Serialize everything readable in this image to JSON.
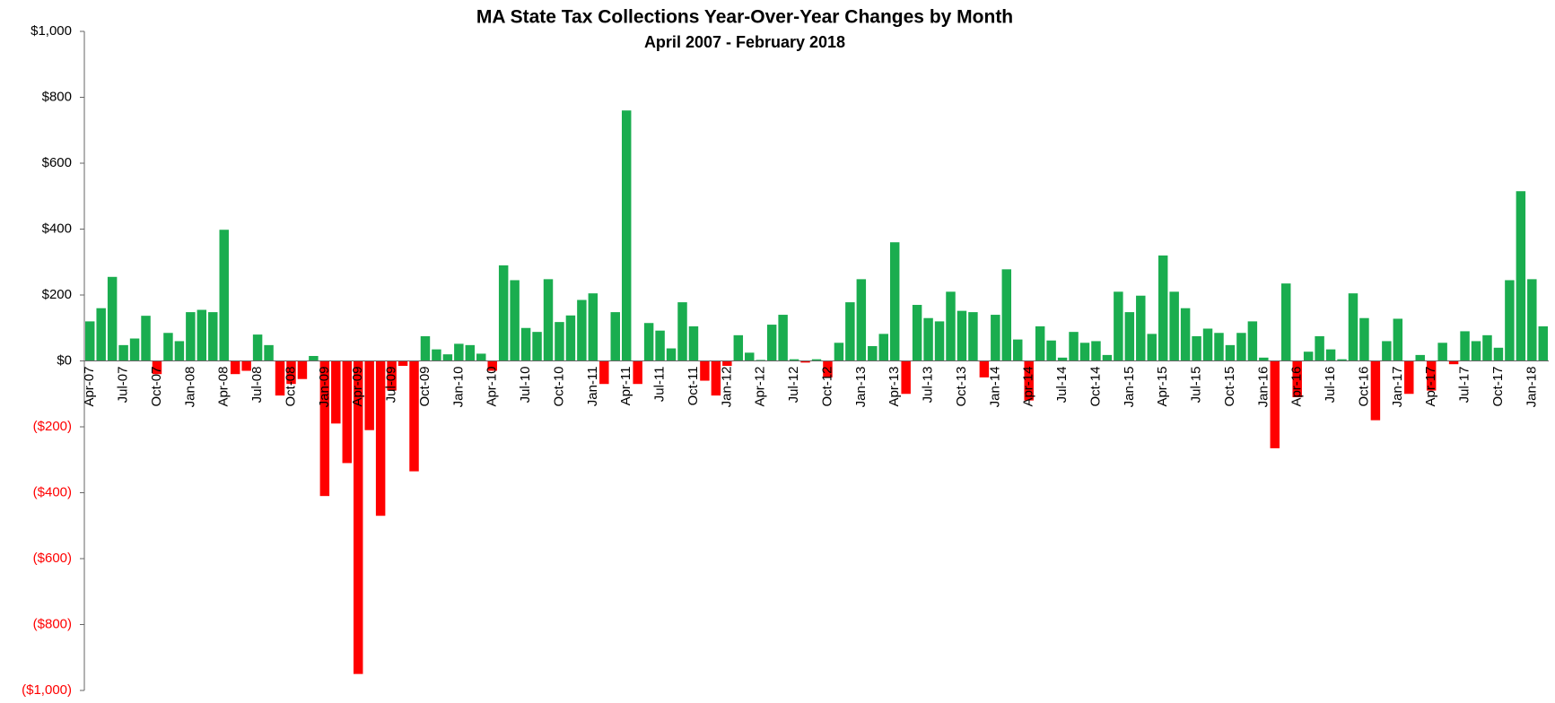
{
  "chart_data": {
    "type": "bar",
    "title": "MA State Tax Collections Year-Over-Year Changes by Month",
    "subtitle": "April 2007 - February 2018",
    "categories": [
      "Apr-07",
      null,
      null,
      "Jul-07",
      null,
      null,
      "Oct-07",
      null,
      null,
      "Jan-08",
      null,
      null,
      "Apr-08",
      null,
      null,
      "Jul-08",
      null,
      null,
      "Oct-08",
      null,
      null,
      "Jan-09",
      null,
      null,
      "Apr-09",
      null,
      null,
      "Jul-09",
      null,
      null,
      "Oct-09",
      null,
      null,
      "Jan-10",
      null,
      null,
      "Apr-10",
      null,
      null,
      "Jul-10",
      null,
      null,
      "Oct-10",
      null,
      null,
      "Jan-11",
      null,
      null,
      "Apr-11",
      null,
      null,
      "Jul-11",
      null,
      null,
      "Oct-11",
      null,
      null,
      "Jan-12",
      null,
      null,
      "Apr-12",
      null,
      null,
      "Jul-12",
      null,
      null,
      "Oct-12",
      null,
      null,
      "Jan-13",
      null,
      null,
      "Apr-13",
      null,
      null,
      "Jul-13",
      null,
      null,
      "Oct-13",
      null,
      null,
      "Jan-14",
      null,
      null,
      "Apr-14",
      null,
      null,
      "Jul-14",
      null,
      null,
      "Oct-14",
      null,
      null,
      "Jan-15",
      null,
      null,
      "Apr-15",
      null,
      null,
      "Jul-15",
      null,
      null,
      "Oct-15",
      null,
      null,
      "Jan-16",
      null,
      null,
      "Apr-16",
      null,
      null,
      "Jul-16",
      null,
      null,
      "Oct-16",
      null,
      null,
      "Jan-17",
      null,
      null,
      "Apr-17",
      null,
      null,
      "Jul-17",
      null,
      null,
      "Oct-17",
      null,
      null,
      "Jan-18",
      null
    ],
    "values": [
      120,
      160,
      255,
      48,
      68,
      137,
      -40,
      85,
      60,
      148,
      155,
      148,
      398,
      -40,
      -30,
      80,
      48,
      -105,
      -70,
      -55,
      15,
      -410,
      -190,
      -310,
      -950,
      -210,
      -470,
      -90,
      -15,
      -335,
      75,
      35,
      20,
      52,
      48,
      22,
      -30,
      290,
      245,
      100,
      88,
      248,
      118,
      138,
      185,
      205,
      -70,
      148,
      760,
      -70,
      115,
      92,
      38,
      178,
      105,
      -60,
      -105,
      -15,
      78,
      25,
      3,
      110,
      140,
      5,
      -5,
      5,
      -50,
      55,
      178,
      248,
      45,
      82,
      360,
      -100,
      170,
      130,
      120,
      210,
      152,
      148,
      -50,
      140,
      278,
      65,
      -120,
      105,
      62,
      10,
      88,
      55,
      60,
      18,
      210,
      148,
      198,
      82,
      320,
      210,
      160,
      75,
      98,
      85,
      48,
      85,
      120,
      10,
      -265,
      235,
      -110,
      28,
      75,
      35,
      5,
      205,
      130,
      -180,
      60,
      128,
      -100,
      18,
      -90,
      55,
      -10,
      90,
      60,
      78,
      40,
      245,
      515,
      248,
      105
    ],
    "positive_color": "#1aad4f",
    "negative_color": "#ff0000",
    "ylim": [
      -1000,
      1000
    ],
    "yticks": [
      {
        "value": -1000,
        "label": "($1,000)"
      },
      {
        "value": -800,
        "label": "($800)"
      },
      {
        "value": -600,
        "label": "($600)"
      },
      {
        "value": -400,
        "label": "($400)"
      },
      {
        "value": -200,
        "label": "($200)"
      },
      {
        "value": 0,
        "label": "$0"
      },
      {
        "value": 200,
        "label": "$200"
      },
      {
        "value": 400,
        "label": "$400"
      },
      {
        "value": 600,
        "label": "$600"
      },
      {
        "value": 800,
        "label": "$800"
      },
      {
        "value": 1000,
        "label": "$1,000"
      }
    ],
    "grid": false
  }
}
